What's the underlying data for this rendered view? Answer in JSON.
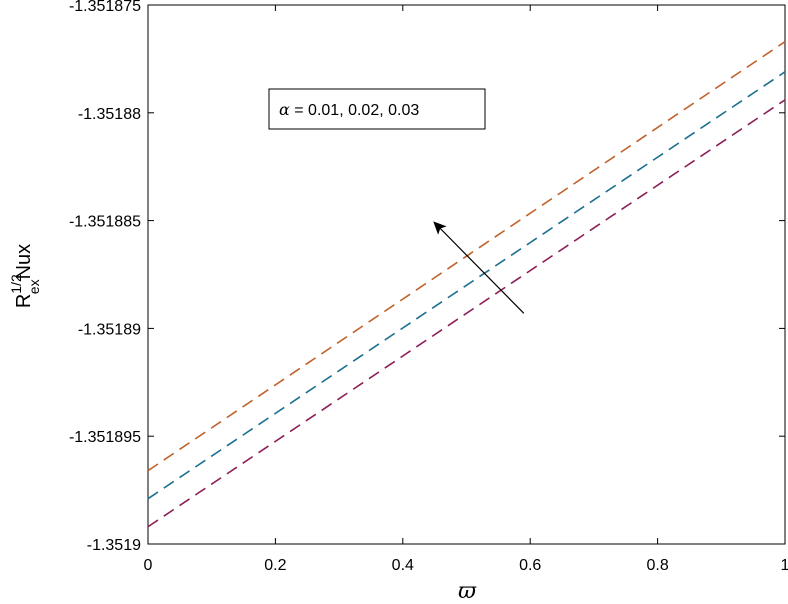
{
  "chart_data": {
    "type": "line",
    "title": "",
    "xlabel": "ϖ",
    "ylabel": {
      "base": "R",
      "superscript": "1/2",
      "subscript": "ex",
      "suffix": "Nux"
    },
    "xlim": [
      0,
      1
    ],
    "ylim": [
      -1.3519,
      -1.351875
    ],
    "xticks": [
      0,
      0.2,
      0.4,
      0.6,
      0.8,
      1
    ],
    "xtick_labels": [
      "0",
      "0.2",
      "0.4",
      "0.6",
      "0.8",
      "1"
    ],
    "yticks": [
      -1.351875,
      -1.35188,
      -1.351885,
      -1.35189,
      -1.351895,
      -1.3519
    ],
    "ytick_labels": [
      "-1.351875",
      "-1.35188",
      "-1.351885",
      "-1.35189",
      "-1.351895",
      "-1.3519"
    ],
    "grid": false,
    "series": [
      {
        "color": "#c0622b",
        "style": "dashed",
        "x": [
          0,
          1
        ],
        "y": [
          -1.3518966,
          -1.3518767
        ]
      },
      {
        "color": "#1b6f8f",
        "style": "dashed",
        "x": [
          0,
          1
        ],
        "y": [
          -1.3518979,
          -1.3518781
        ]
      },
      {
        "color": "#8c1f55",
        "style": "dashed",
        "x": [
          0,
          1
        ],
        "y": [
          -1.3518992,
          -1.3518794
        ]
      }
    ],
    "annotation": {
      "symbol": "α",
      "text": " = 0.01, 0.02, 0.03",
      "arrow": {
        "from": [
          0.59,
          -1.3518893
        ],
        "to": [
          0.45,
          -1.3518851
        ]
      }
    }
  }
}
